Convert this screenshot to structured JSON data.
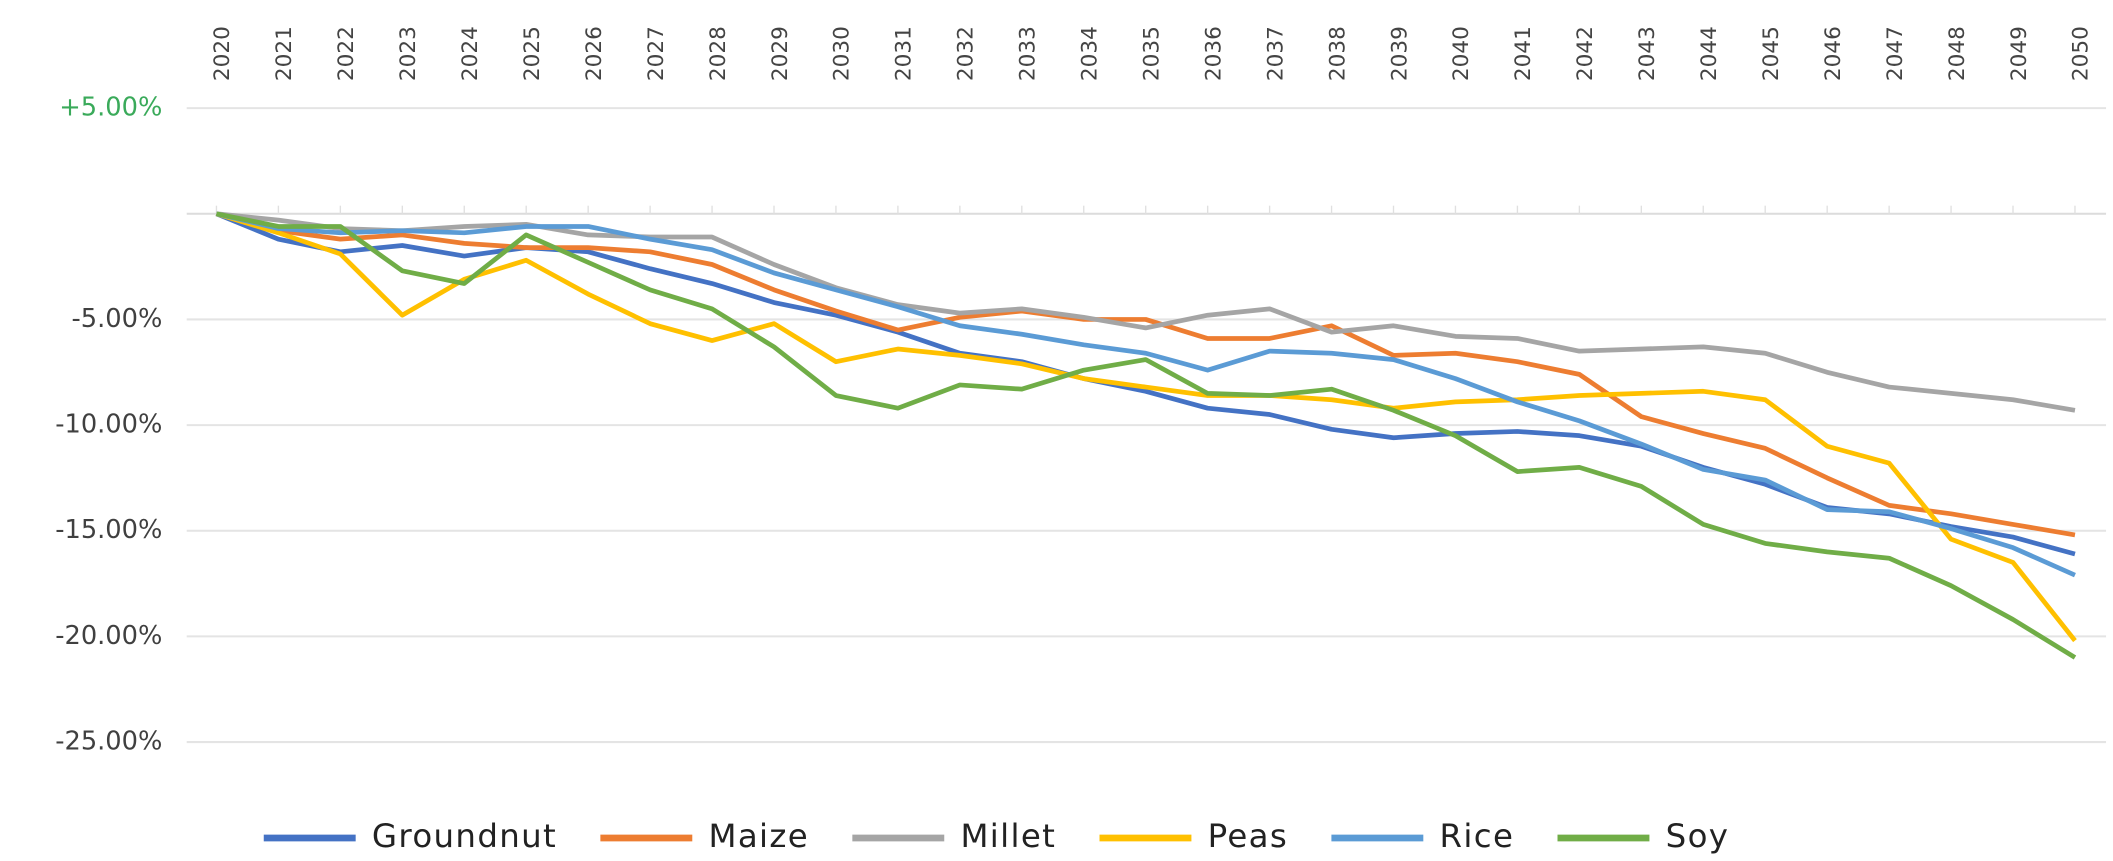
{
  "chart_data": {
    "type": "line",
    "categories": [
      "2020",
      "2021",
      "2022",
      "2023",
      "2024",
      "2025",
      "2026",
      "2027",
      "2028",
      "2029",
      "2030",
      "2031",
      "2032",
      "2033",
      "2034",
      "2035",
      "2036",
      "2037",
      "2038",
      "2039",
      "2040",
      "2041",
      "2042",
      "2043",
      "2044",
      "2045",
      "2046",
      "2047",
      "2048",
      "2049",
      "2050"
    ],
    "ylim": [
      -25,
      5
    ],
    "yticks": [
      {
        "value": 5,
        "label": "+5.00%"
      },
      {
        "value": -5,
        "label": "-5.00%"
      },
      {
        "value": -10,
        "label": "-10.00%"
      },
      {
        "value": -15,
        "label": "-15.00%"
      },
      {
        "value": -20,
        "label": "-20.00%"
      },
      {
        "value": -25,
        "label": "-25.00%"
      }
    ],
    "positive_tick_color": "#3aaa5a",
    "grid": true,
    "legend": "bottom",
    "series": [
      {
        "name": "Groundnut",
        "color": "#4472c4",
        "values": [
          0,
          -1.2,
          -1.8,
          -1.5,
          -2.0,
          -1.6,
          -1.8,
          -2.6,
          -3.3,
          -4.2,
          -4.8,
          -5.6,
          -6.6,
          -7.0,
          -7.8,
          -8.4,
          -9.2,
          -9.5,
          -10.2,
          -10.6,
          -10.4,
          -10.3,
          -10.5,
          -11.0,
          -12.0,
          -12.8,
          -13.9,
          -14.2,
          -14.8,
          -15.3,
          -16.1
        ]
      },
      {
        "name": "Maize",
        "color": "#ed7d31",
        "values": [
          0,
          -0.8,
          -1.2,
          -1.0,
          -1.4,
          -1.6,
          -1.6,
          -1.8,
          -2.4,
          -3.6,
          -4.6,
          -5.5,
          -4.9,
          -4.6,
          -5.0,
          -5.0,
          -5.9,
          -5.9,
          -5.3,
          -6.7,
          -6.6,
          -7.0,
          -7.6,
          -9.6,
          -10.4,
          -11.1,
          -12.5,
          -13.8,
          -14.2,
          -14.7,
          -15.2
        ]
      },
      {
        "name": "Millet",
        "color": "#a5a5a5",
        "values": [
          0,
          -0.3,
          -0.7,
          -0.8,
          -0.6,
          -0.5,
          -1.0,
          -1.1,
          -1.1,
          -2.4,
          -3.5,
          -4.3,
          -4.7,
          -4.5,
          -4.9,
          -5.4,
          -4.8,
          -4.5,
          -5.6,
          -5.3,
          -5.8,
          -5.9,
          -6.5,
          -6.4,
          -6.3,
          -6.6,
          -7.5,
          -8.2,
          -8.5,
          -8.8,
          -9.3
        ]
      },
      {
        "name": "Peas",
        "color": "#ffc000",
        "values": [
          0,
          -0.9,
          -1.9,
          -4.8,
          -3.1,
          -2.2,
          -3.8,
          -5.2,
          -6.0,
          -5.2,
          -7.0,
          -6.4,
          -6.7,
          -7.1,
          -7.8,
          -8.2,
          -8.6,
          -8.6,
          -8.8,
          -9.2,
          -8.9,
          -8.8,
          -8.6,
          -8.5,
          -8.4,
          -8.8,
          -11.0,
          -11.8,
          -15.4,
          -16.5,
          -20.2
        ]
      },
      {
        "name": "Rice",
        "color": "#5b9bd5",
        "values": [
          0,
          -0.7,
          -0.9,
          -0.8,
          -0.9,
          -0.6,
          -0.6,
          -1.2,
          -1.7,
          -2.8,
          -3.6,
          -4.4,
          -5.3,
          -5.7,
          -6.2,
          -6.6,
          -7.4,
          -6.5,
          -6.6,
          -6.9,
          -7.8,
          -8.9,
          -9.8,
          -10.9,
          -12.1,
          -12.6,
          -14.0,
          -14.1,
          -14.9,
          -15.8,
          -17.1
        ]
      },
      {
        "name": "Soy",
        "color": "#70ad47",
        "values": [
          0,
          -0.6,
          -0.6,
          -2.7,
          -3.3,
          -1.0,
          -2.3,
          -3.6,
          -4.5,
          -6.3,
          -8.6,
          -9.2,
          -8.1,
          -8.3,
          -7.4,
          -6.9,
          -8.5,
          -8.6,
          -8.3,
          -9.3,
          -10.5,
          -12.2,
          -12.0,
          -12.9,
          -14.7,
          -15.6,
          -16.0,
          -16.3,
          -17.6,
          -19.2,
          -21.0
        ]
      }
    ]
  }
}
